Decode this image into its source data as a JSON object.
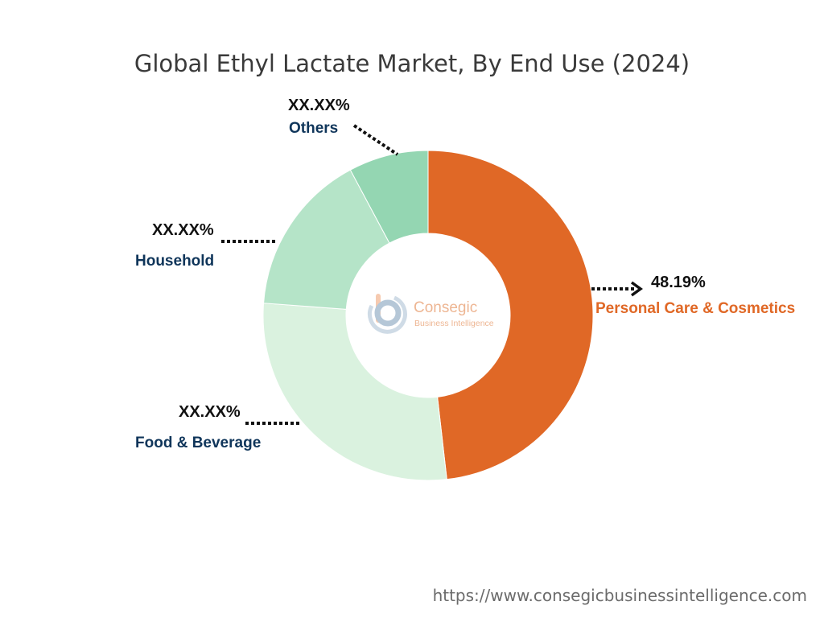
{
  "chart_data": {
    "type": "pie",
    "title": "Global Ethyl Lactate Market, By End Use (2024)",
    "categories": [
      "Personal Care & Cosmetics",
      "Food & Beverage",
      "Household",
      "Others"
    ],
    "values": [
      48.19,
      28.0,
      16.0,
      7.81
    ],
    "value_labels": [
      "48.19%",
      "XX.XX%",
      "XX.XX%",
      "XX.XX%"
    ],
    "colors": [
      "#e06826",
      "#daf2df",
      "#b5e4c8",
      "#94d6b2"
    ],
    "label_colors": [
      "#e06826",
      "#0f355a",
      "#0f355a",
      "#0f355a"
    ],
    "start_angle": "top",
    "direction": "clockwise",
    "donut": true,
    "legend": "none"
  },
  "watermark": {
    "brand": "Consegic",
    "tagline": "Business Intelligence"
  },
  "source_url": "https://www.consegicbusinessintelligence.com"
}
